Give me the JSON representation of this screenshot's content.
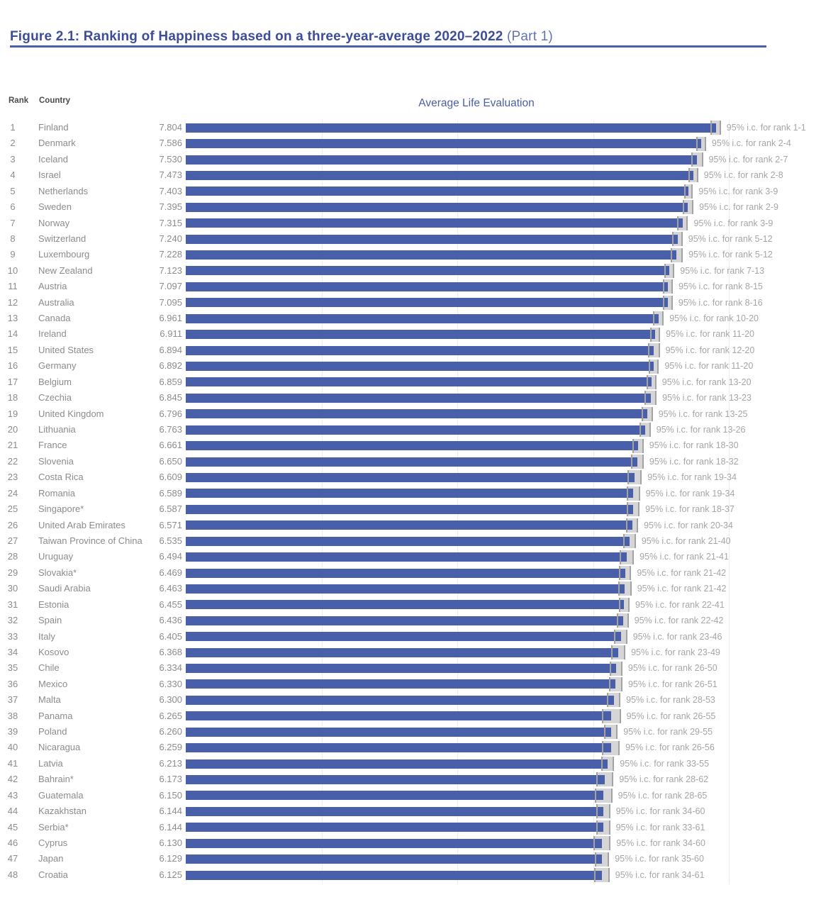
{
  "figure": {
    "title_bold": "Figure 2.1: Ranking of Happiness based on a three-year-average 2020–2022",
    "title_light": "(Part 1)"
  },
  "table_header": {
    "rank": "Rank",
    "country": "Country"
  },
  "colors": {
    "title_bold": "#3c4d9c",
    "title_light": "#6273b8",
    "rule": "#4a5fa9",
    "axis_title": "#4a5fa9",
    "row_text": "#8c8c8c",
    "ci_label_text": "#a6a6a6",
    "bar": "#4a5fa9",
    "ci_box": "#d5d5d5",
    "ci_whisker": "#a3a3a3",
    "gridline": "#ededed"
  },
  "chart_data": {
    "type": "bar",
    "title": "Average Life Evaluation",
    "xlabel": "",
    "ylabel": "",
    "xlim": [
      0,
      8.5
    ],
    "gridlines_at": [
      2,
      4,
      6,
      8
    ],
    "legend": "none",
    "ci_label_prefix": "95% i.c. for rank ",
    "rows": [
      {
        "rank": 1,
        "country": "Finland",
        "value": 7.804,
        "ci": 0.075,
        "ci_rank_range": "1-1"
      },
      {
        "rank": 2,
        "country": "Denmark",
        "value": 7.586,
        "ci": 0.075,
        "ci_rank_range": "2-4"
      },
      {
        "rank": 3,
        "country": "Iceland",
        "value": 7.53,
        "ci": 0.085,
        "ci_rank_range": "2-7"
      },
      {
        "rank": 4,
        "country": "Israel",
        "value": 7.473,
        "ci": 0.072,
        "ci_rank_range": "2-8"
      },
      {
        "rank": 5,
        "country": "Netherlands",
        "value": 7.403,
        "ci": 0.065,
        "ci_rank_range": "3-9"
      },
      {
        "rank": 6,
        "country": "Sweden",
        "value": 7.395,
        "ci": 0.08,
        "ci_rank_range": "2-9"
      },
      {
        "rank": 7,
        "country": "Norway",
        "value": 7.315,
        "ci": 0.08,
        "ci_rank_range": "3-9"
      },
      {
        "rank": 8,
        "country": "Switzerland",
        "value": 7.24,
        "ci": 0.075,
        "ci_rank_range": "5-12"
      },
      {
        "rank": 9,
        "country": "Luxembourg",
        "value": 7.228,
        "ci": 0.09,
        "ci_rank_range": "5-12"
      },
      {
        "rank": 10,
        "country": "New Zealand",
        "value": 7.123,
        "ci": 0.072,
        "ci_rank_range": "7-13"
      },
      {
        "rank": 11,
        "country": "Austria",
        "value": 7.097,
        "ci": 0.075,
        "ci_rank_range": "8-15"
      },
      {
        "rank": 12,
        "country": "Australia",
        "value": 7.095,
        "ci": 0.075,
        "ci_rank_range": "8-16"
      },
      {
        "rank": 13,
        "country": "Canada",
        "value": 6.961,
        "ci": 0.077,
        "ci_rank_range": "10-20"
      },
      {
        "rank": 14,
        "country": "Ireland",
        "value": 6.911,
        "ci": 0.074,
        "ci_rank_range": "11-20"
      },
      {
        "rank": 15,
        "country": "United States",
        "value": 6.894,
        "ci": 0.085,
        "ci_rank_range": "12-20"
      },
      {
        "rank": 16,
        "country": "Germany",
        "value": 6.892,
        "ci": 0.075,
        "ci_rank_range": "11-20"
      },
      {
        "rank": 17,
        "country": "Belgium",
        "value": 6.859,
        "ci": 0.07,
        "ci_rank_range": "13-20"
      },
      {
        "rank": 18,
        "country": "Czechia",
        "value": 6.845,
        "ci": 0.088,
        "ci_rank_range": "13-23"
      },
      {
        "rank": 19,
        "country": "United Kingdom",
        "value": 6.796,
        "ci": 0.08,
        "ci_rank_range": "13-25"
      },
      {
        "rank": 20,
        "country": "Lithuania",
        "value": 6.763,
        "ci": 0.082,
        "ci_rank_range": "13-26"
      },
      {
        "rank": 21,
        "country": "France",
        "value": 6.661,
        "ci": 0.08,
        "ci_rank_range": "18-30"
      },
      {
        "rank": 22,
        "country": "Slovenia",
        "value": 6.65,
        "ci": 0.092,
        "ci_rank_range": "18-32"
      },
      {
        "rank": 23,
        "country": "Costa Rica",
        "value": 6.609,
        "ci": 0.105,
        "ci_rank_range": "19-34"
      },
      {
        "rank": 24,
        "country": "Romania",
        "value": 6.589,
        "ci": 0.098,
        "ci_rank_range": "19-34"
      },
      {
        "rank": 25,
        "country": "Singapore*",
        "value": 6.587,
        "ci": 0.095,
        "ci_rank_range": "18-37"
      },
      {
        "rank": 26,
        "country": "United Arab Emirates",
        "value": 6.571,
        "ci": 0.09,
        "ci_rank_range": "20-34"
      },
      {
        "rank": 27,
        "country": "Taiwan Province of China",
        "value": 6.535,
        "ci": 0.092,
        "ci_rank_range": "21-40"
      },
      {
        "rank": 28,
        "country": "Uruguay",
        "value": 6.494,
        "ci": 0.105,
        "ci_rank_range": "21-41"
      },
      {
        "rank": 29,
        "country": "Slovakia*",
        "value": 6.469,
        "ci": 0.09,
        "ci_rank_range": "21-42"
      },
      {
        "rank": 30,
        "country": "Saudi Arabia",
        "value": 6.463,
        "ci": 0.1,
        "ci_rank_range": "21-42"
      },
      {
        "rank": 31,
        "country": "Estonia",
        "value": 6.455,
        "ci": 0.08,
        "ci_rank_range": "22-41"
      },
      {
        "rank": 32,
        "country": "Spain",
        "value": 6.436,
        "ci": 0.085,
        "ci_rank_range": "22-42"
      },
      {
        "rank": 33,
        "country": "Italy",
        "value": 6.405,
        "ci": 0.095,
        "ci_rank_range": "23-46"
      },
      {
        "rank": 34,
        "country": "Kosovo",
        "value": 6.368,
        "ci": 0.105,
        "ci_rank_range": "23-49"
      },
      {
        "rank": 35,
        "country": "Chile",
        "value": 6.334,
        "ci": 0.095,
        "ci_rank_range": "26-50"
      },
      {
        "rank": 36,
        "country": "Mexico",
        "value": 6.33,
        "ci": 0.1,
        "ci_rank_range": "26-51"
      },
      {
        "rank": 37,
        "country": "Malta",
        "value": 6.3,
        "ci": 0.1,
        "ci_rank_range": "28-53"
      },
      {
        "rank": 38,
        "country": "Panama",
        "value": 6.265,
        "ci": 0.14,
        "ci_rank_range": "26-55"
      },
      {
        "rank": 39,
        "country": "Poland",
        "value": 6.26,
        "ci": 0.1,
        "ci_rank_range": "29-55"
      },
      {
        "rank": 40,
        "country": "Nicaragua",
        "value": 6.259,
        "ci": 0.13,
        "ci_rank_range": "26-56"
      },
      {
        "rank": 41,
        "country": "Latvia",
        "value": 6.213,
        "ci": 0.095,
        "ci_rank_range": "33-55"
      },
      {
        "rank": 42,
        "country": "Bahrain*",
        "value": 6.173,
        "ci": 0.125,
        "ci_rank_range": "28-62"
      },
      {
        "rank": 43,
        "country": "Guatemala",
        "value": 6.15,
        "ci": 0.13,
        "ci_rank_range": "28-65"
      },
      {
        "rank": 44,
        "country": "Kazakhstan",
        "value": 6.144,
        "ci": 0.105,
        "ci_rank_range": "34-60"
      },
      {
        "rank": 45,
        "country": "Serbia*",
        "value": 6.144,
        "ci": 0.105,
        "ci_rank_range": "33-61"
      },
      {
        "rank": 46,
        "country": "Cyprus",
        "value": 6.13,
        "ci": 0.125,
        "ci_rank_range": "34-60"
      },
      {
        "rank": 47,
        "country": "Japan",
        "value": 6.129,
        "ci": 0.105,
        "ci_rank_range": "35-60"
      },
      {
        "rank": 48,
        "country": "Croatia",
        "value": 6.125,
        "ci": 0.115,
        "ci_rank_range": "34-61"
      }
    ]
  }
}
